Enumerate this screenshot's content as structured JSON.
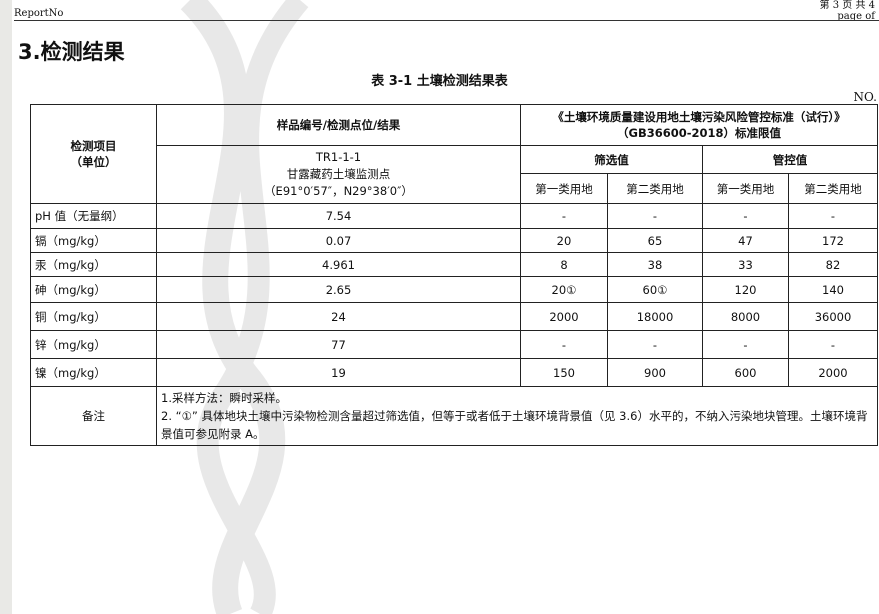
{
  "header": {
    "report_no": "ReportNo",
    "page_cn": "第 3 页 共 4",
    "page_en": "page    of"
  },
  "section_title": "3.检测结果",
  "table_caption": "表 3-1 土壤检测结果表",
  "no_label": "NO.",
  "table": {
    "item_header": "检测项目",
    "unit_header": "（单位）",
    "sample_header": "样品编号/检测点位/结果",
    "sample_id": "TR1-1-1",
    "sample_site": "甘露藏药土壤监测点",
    "sample_coords": "（E91°0′57″，N29°38′0″）",
    "standard_header": "《土壤环境质量建设用地土壤污染风险管控标准（试行）》",
    "standard_code": "（GB36600-2018）标准限值",
    "screening": "筛选值",
    "control": "管控值",
    "class1": "第一类用地",
    "class2": "第二类用地",
    "rows": [
      {
        "item": "pH 值（无量纲）",
        "result": "7.54",
        "s1": "-",
        "s2": "-",
        "c1": "-",
        "c2": "-"
      },
      {
        "item": "镉（mg/kg）",
        "result": "0.07",
        "s1": "20",
        "s2": "65",
        "c1": "47",
        "c2": "172"
      },
      {
        "item": "汞（mg/kg）",
        "result": "4.961",
        "s1": "8",
        "s2": "38",
        "c1": "33",
        "c2": "82"
      },
      {
        "item": "砷（mg/kg）",
        "result": "2.65",
        "s1": "20①",
        "s2": "60①",
        "c1": "120",
        "c2": "140"
      },
      {
        "item": "铜（mg/kg）",
        "result": "24",
        "s1": "2000",
        "s2": "18000",
        "c1": "8000",
        "c2": "36000"
      },
      {
        "item": "锌（mg/kg）",
        "result": "77",
        "s1": "-",
        "s2": "-",
        "c1": "-",
        "c2": "-"
      },
      {
        "item": "镍（mg/kg）",
        "result": "19",
        "s1": "150",
        "s2": "900",
        "c1": "600",
        "c2": "2000"
      }
    ],
    "notes_label": "备注",
    "note1": "1.采样方法：瞬时采样。",
    "note2": "2. “①” 具体地块土壤中污染物检测含量超过筛选值，但等于或者低于土壤环境背景值（见 3.6）水平的，不纳入污染地块管理。土壤环境背景值可参见附录 A。"
  }
}
